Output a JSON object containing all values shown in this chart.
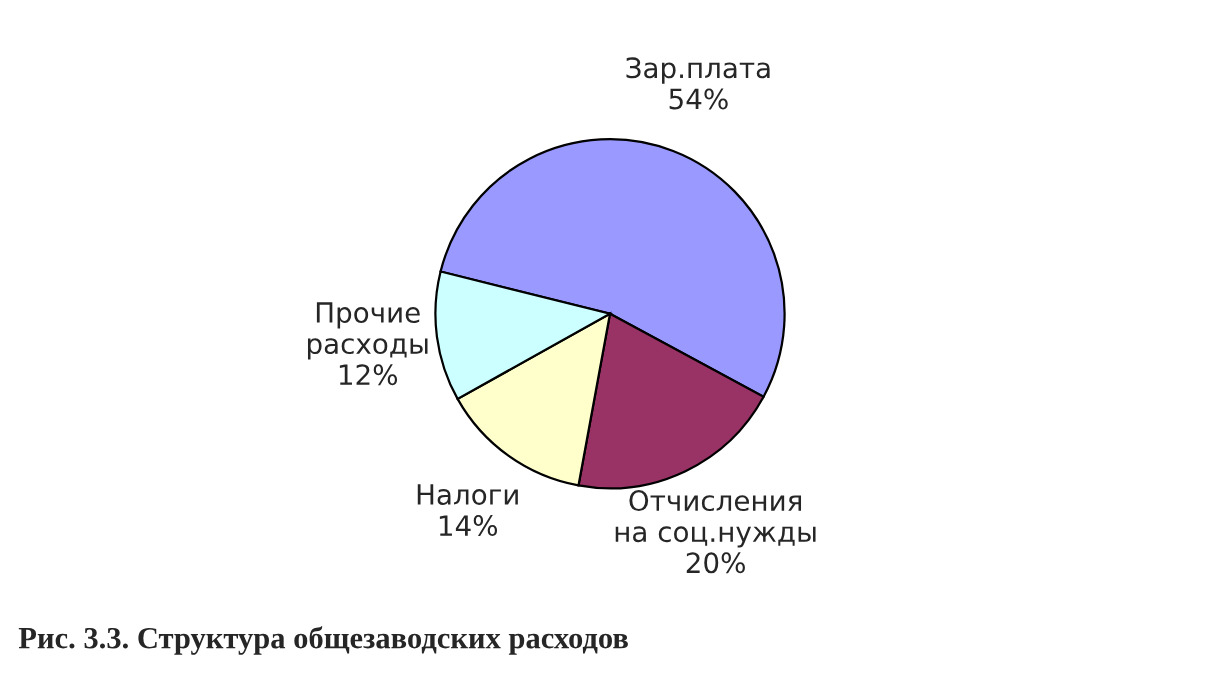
{
  "chart_data": {
    "type": "pie",
    "title": "Рис. 3.3. Структура общезаводских расходов",
    "categories": [
      "Зар.плата",
      "Отчисления\nна соц.нужды",
      "Налоги",
      "Прочие\nрасходы"
    ],
    "values": [
      54,
      20,
      14,
      12
    ],
    "value_labels": [
      "54%",
      "20%",
      "14%",
      "12%"
    ],
    "colors": [
      "#9999ff",
      "#993366",
      "#ffffcc",
      "#ccffff"
    ]
  }
}
